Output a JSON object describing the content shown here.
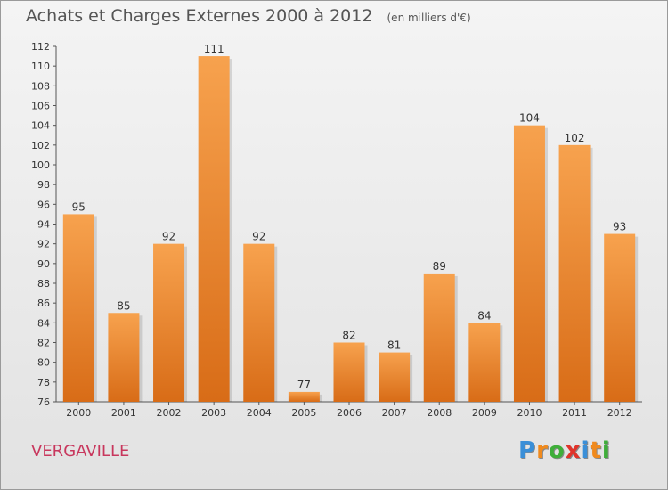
{
  "chart_data": {
    "type": "bar",
    "title": "Achats et Charges Externes 2000 à 2012",
    "subtitle": "(en milliers d'€)",
    "categories": [
      "2000",
      "2001",
      "2002",
      "2003",
      "2004",
      "2005",
      "2006",
      "2007",
      "2008",
      "2009",
      "2010",
      "2011",
      "2012"
    ],
    "values": [
      95,
      85,
      92,
      111,
      92,
      77,
      82,
      81,
      89,
      84,
      104,
      102,
      93
    ],
    "ylim": [
      76,
      112
    ],
    "yticks": [
      76,
      78,
      80,
      82,
      84,
      86,
      88,
      90,
      92,
      94,
      96,
      98,
      100,
      102,
      104,
      106,
      108,
      110,
      112
    ],
    "grid": false,
    "bar_color": "#f0943c",
    "xlabel": "",
    "ylabel": ""
  },
  "footer": {
    "city": "VERGAVILLE",
    "logo_letters": [
      "P",
      "r",
      "o",
      "x",
      "i",
      "t",
      "i"
    ],
    "logo_colors": [
      "#3a8fd8",
      "#f08a1d",
      "#3fae3a",
      "#e0342b",
      "#3a8fd8",
      "#f08a1d",
      "#3fae3a"
    ]
  }
}
